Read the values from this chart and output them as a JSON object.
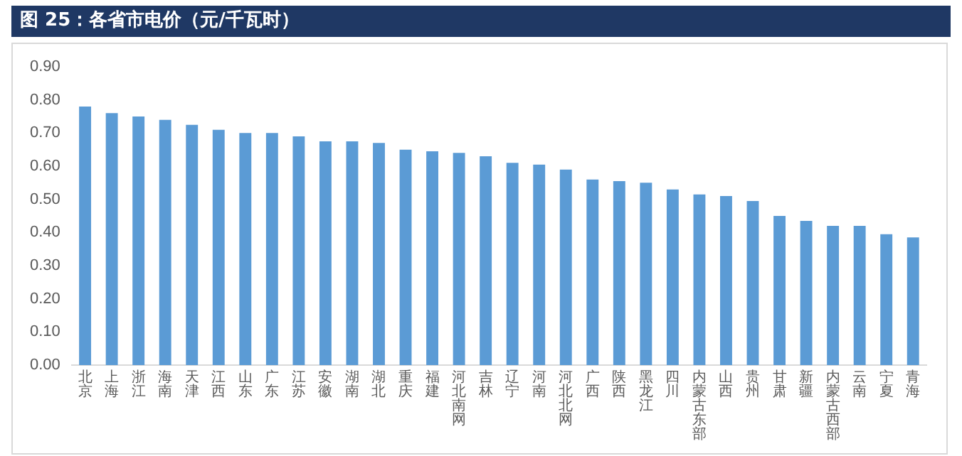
{
  "chart_data": {
    "type": "bar",
    "title": "图 25：各省市电价（元/千瓦时）",
    "categories": [
      "北京",
      "上海",
      "浙江",
      "海南",
      "天津",
      "江西",
      "山东",
      "广东",
      "江苏",
      "安徽",
      "湖南",
      "湖北",
      "重庆",
      "福建",
      "河北南网",
      "吉林",
      "辽宁",
      "河南",
      "河北北网",
      "广西",
      "陕西",
      "黑龙江",
      "四川",
      "内蒙古东部",
      "山西",
      "贵州",
      "甘肃",
      "新疆",
      "内蒙古西部",
      "云南",
      "宁夏",
      "青海"
    ],
    "values": [
      0.78,
      0.76,
      0.75,
      0.74,
      0.725,
      0.71,
      0.7,
      0.7,
      0.69,
      0.675,
      0.675,
      0.67,
      0.65,
      0.645,
      0.64,
      0.63,
      0.61,
      0.605,
      0.59,
      0.56,
      0.555,
      0.55,
      0.53,
      0.515,
      0.51,
      0.495,
      0.45,
      0.435,
      0.42,
      0.42,
      0.395,
      0.385
    ],
    "color": "#5b9bd5",
    "ylim": [
      0,
      0.9
    ],
    "yticks": [
      {
        "value": 0,
        "label": "0.00"
      },
      {
        "value": 0.1,
        "label": "0.10"
      },
      {
        "value": 0.2,
        "label": "0.20"
      },
      {
        "value": 0.3,
        "label": "0.30"
      },
      {
        "value": 0.4,
        "label": "0.40"
      },
      {
        "value": 0.5,
        "label": "0.50"
      },
      {
        "value": 0.6,
        "label": "0.60"
      },
      {
        "value": 0.7,
        "label": "0.70"
      },
      {
        "value": 0.8,
        "label": "0.80"
      },
      {
        "value": 0.9,
        "label": "0.90"
      }
    ],
    "grid": false,
    "legend": false
  }
}
